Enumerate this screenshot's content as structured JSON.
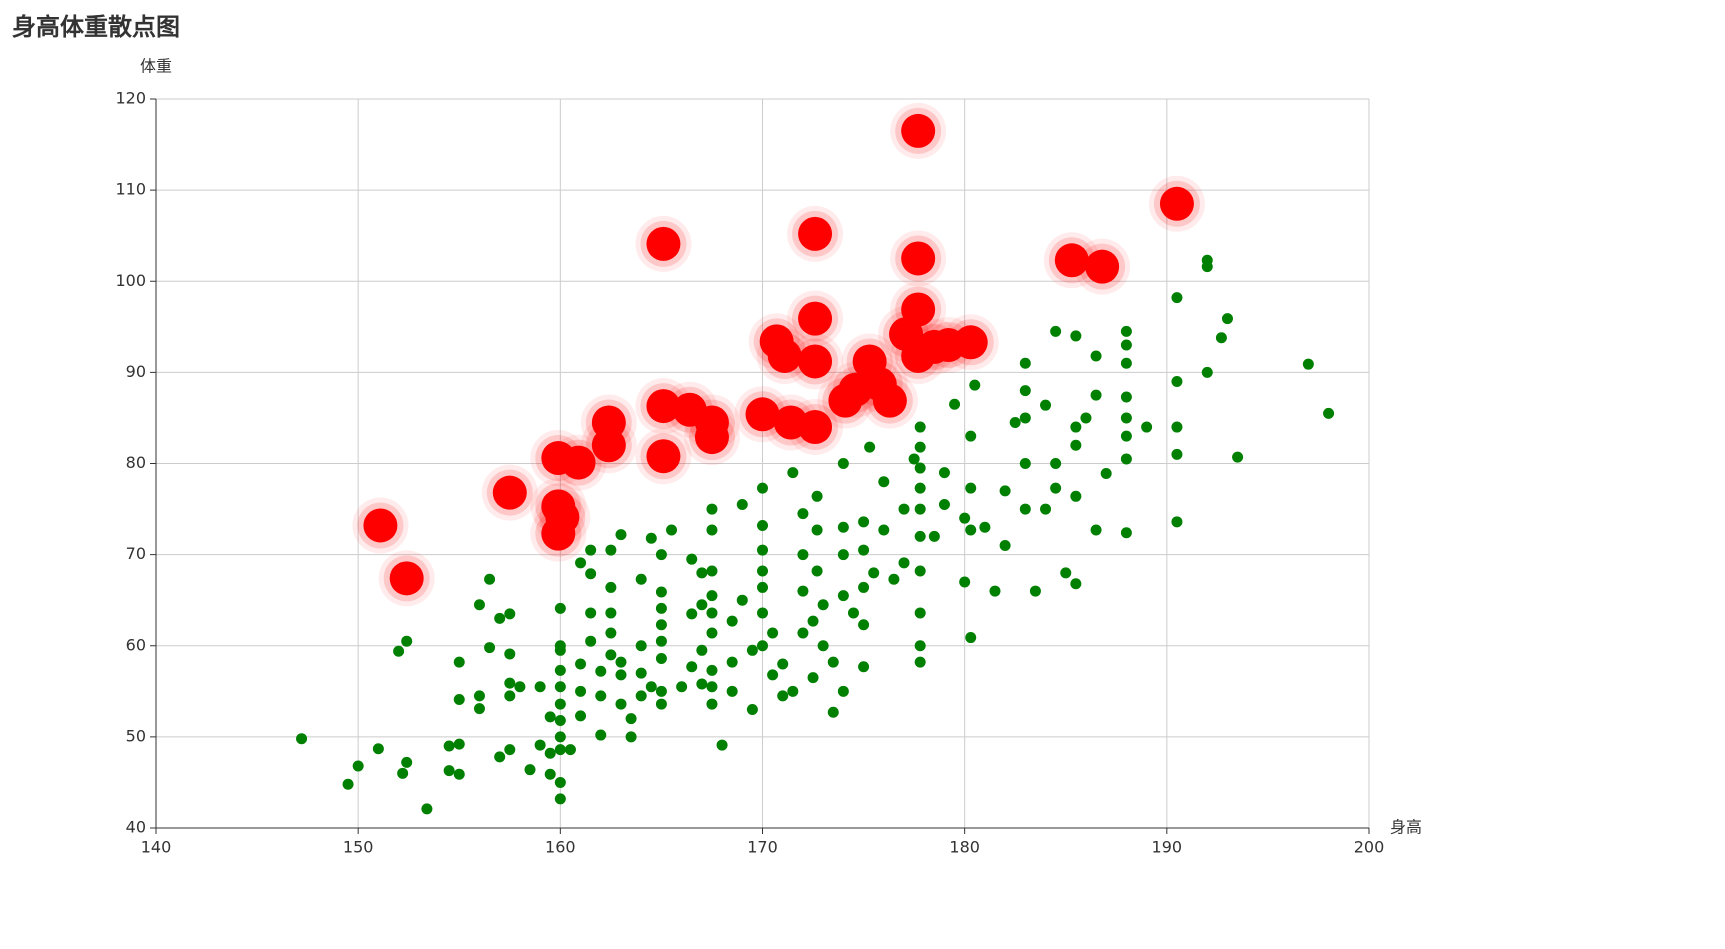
{
  "chart_data": {
    "type": "scatter",
    "title": "身高体重散点图",
    "x_label": "身高",
    "y_label": "体重",
    "xlim": [
      140,
      200
    ],
    "xticks": [
      140,
      150,
      160,
      170,
      180,
      190,
      200
    ],
    "ylim": [
      40,
      120
    ],
    "yticks": [
      40,
      50,
      60,
      70,
      80,
      90,
      100,
      110,
      120
    ],
    "grid": true,
    "series": [
      {
        "color": "#008000",
        "ripple": false,
        "x": [
          147.2,
          149.5,
          150,
          151,
          152,
          152.4,
          152.4,
          152.2,
          153.4,
          154.5,
          154.5,
          155,
          155,
          155,
          155,
          156,
          156,
          156,
          156.5,
          156.5,
          157,
          157.5,
          157.5,
          157.5,
          157.5,
          157,
          157.5,
          158,
          158.5,
          159,
          159,
          159.5,
          159.5,
          159.5,
          160,
          160,
          160,
          160,
          160,
          160,
          160,
          160,
          160,
          160,
          160,
          160.5,
          161,
          161,
          161,
          161,
          161.5,
          161.5,
          161.5,
          161.5,
          162,
          162,
          162,
          162.5,
          162.5,
          162.5,
          162.5,
          162.5,
          163,
          163,
          163,
          163,
          163.5,
          163.5,
          164,
          164,
          164,
          164,
          164.5,
          164.5,
          165,
          165,
          165,
          165,
          165,
          165,
          165,
          165,
          165.5,
          166,
          166.5,
          166.5,
          166.5,
          167,
          167,
          167,
          167,
          167.5,
          167.5,
          167.5,
          167.5,
          167.5,
          167.5,
          167.5,
          167.5,
          167.5,
          168,
          168.5,
          168.5,
          168.5,
          169,
          169,
          169.5,
          169.5,
          170,
          170,
          170,
          170,
          170,
          170,
          170,
          170.5,
          170.5,
          171,
          171,
          171.5,
          171.5,
          172,
          172,
          172,
          172,
          172.5,
          172.5,
          172.7,
          172.7,
          172.7,
          173,
          173,
          173.5,
          173.5,
          174,
          174,
          174,
          174,
          174,
          174.5,
          175,
          175,
          175,
          175,
          175,
          175.3,
          175.5,
          176,
          176,
          176.5,
          177,
          177,
          177.5,
          177.8,
          177.8,
          177.8,
          177.8,
          177.8,
          177.8,
          177.8,
          177.8,
          177.8,
          177.8,
          178.5,
          179,
          179,
          179.5,
          180,
          180,
          180.3,
          180.3,
          180.3,
          180.3,
          180.5,
          181,
          181.5,
          182,
          182,
          182.5,
          183,
          183,
          183,
          183,
          183,
          183.5,
          184,
          184,
          184.5,
          184.5,
          184.5,
          185,
          185.5,
          185.5,
          185.5,
          185.5,
          185.5,
          186,
          186.5,
          186.5,
          186.5,
          187,
          188,
          188,
          188,
          188,
          188,
          188,
          188,
          188,
          189,
          190.5,
          190.5,
          190.5,
          190.5,
          190.5,
          192,
          192,
          192,
          192.7,
          193,
          193.5,
          197,
          198
        ],
        "values": [
          49.8,
          44.8,
          46.8,
          48.7,
          59.4,
          60.5,
          47.2,
          46,
          42.1,
          46.3,
          49,
          49.2,
          45.9,
          54.1,
          58.2,
          53.1,
          54.5,
          64.5,
          67.3,
          59.8,
          63,
          63.5,
          59.1,
          55.9,
          54.5,
          47.8,
          48.6,
          55.5,
          46.4,
          55.5,
          49.1,
          48.2,
          52.2,
          45.9,
          43.2,
          45,
          48.6,
          50,
          51.8,
          53.6,
          55.5,
          57.3,
          59.5,
          60,
          64.1,
          48.6,
          55,
          52.3,
          58,
          69.1,
          63.6,
          60.5,
          67.9,
          70.5,
          50.2,
          54.5,
          57.2,
          59,
          61.4,
          63.6,
          66.4,
          70.5,
          53.6,
          56.8,
          58.2,
          72.2,
          50,
          52,
          54.5,
          57,
          60,
          67.3,
          71.8,
          55.5,
          58.6,
          60.5,
          62.3,
          64.1,
          65.9,
          70,
          55,
          53.6,
          72.7,
          55.5,
          57.7,
          63.5,
          69.5,
          55.8,
          59.5,
          64.5,
          68,
          53.6,
          55.5,
          57.3,
          61.4,
          63.6,
          65.5,
          68.2,
          72.7,
          75,
          49.1,
          55,
          58.2,
          62.7,
          65,
          75.5,
          53,
          59.5,
          60,
          63.6,
          66.4,
          68.2,
          70.5,
          73.2,
          77.3,
          56.8,
          61.4,
          54.5,
          58,
          55,
          79,
          61.4,
          66,
          70,
          74.5,
          56.5,
          62.7,
          68.2,
          72.7,
          76.4,
          60,
          64.5,
          52.7,
          58.2,
          55,
          65.5,
          70,
          73,
          80,
          63.6,
          57.7,
          62.3,
          66.4,
          70.5,
          73.6,
          81.8,
          68,
          72.7,
          78,
          67.3,
          69.1,
          75,
          80.5,
          58.2,
          60,
          63.6,
          68.2,
          72,
          75,
          77.3,
          79.5,
          81.8,
          84,
          72,
          79,
          75.5,
          86.5,
          67,
          74,
          60.9,
          72.7,
          77.3,
          83,
          88.6,
          73,
          66,
          71,
          77,
          84.5,
          75,
          80,
          85,
          88,
          91,
          66,
          75,
          86.4,
          77.3,
          80,
          94.5,
          68,
          66.8,
          76.4,
          82,
          84,
          94,
          85,
          72.7,
          87.5,
          91.8,
          78.9,
          72.4,
          80.5,
          83,
          85,
          87.3,
          91,
          93,
          94.5,
          84,
          73.6,
          81,
          84,
          89,
          98.2,
          90,
          101.6,
          102.3,
          93.8,
          95.9,
          80.7,
          90.9,
          85.5
        ]
      },
      {
        "color": "#ff0000",
        "ripple": true,
        "x": [
          151.1,
          152.4,
          157.5,
          159.9,
          160.9,
          159.9,
          159.9,
          160.1,
          162.4,
          162.4,
          165.1,
          165.1,
          165.1,
          166.4,
          167.5,
          167.5,
          170,
          170.7,
          171.1,
          171.4,
          172.6,
          172.6,
          172.6,
          172.6,
          174.1,
          174.6,
          175.3,
          175.8,
          176.3,
          177.1,
          177.7,
          177.7,
          177.7,
          177.7,
          178.5,
          179.2,
          180.3,
          185.3,
          186.8,
          190.5
        ],
        "values": [
          73.2,
          67.4,
          76.8,
          80.6,
          80.1,
          75.3,
          72.3,
          74.1,
          84.5,
          82,
          80.8,
          86.3,
          104.1,
          85.9,
          84.5,
          82.9,
          85.4,
          93.4,
          91.8,
          84.5,
          91.2,
          95.9,
          105.2,
          84,
          86.9,
          88.1,
          91.2,
          88.7,
          86.9,
          94.2,
          96.9,
          102.5,
          116.5,
          91.8,
          92.8,
          93,
          93.3,
          102.3,
          101.6,
          108.5
        ]
      }
    ]
  }
}
